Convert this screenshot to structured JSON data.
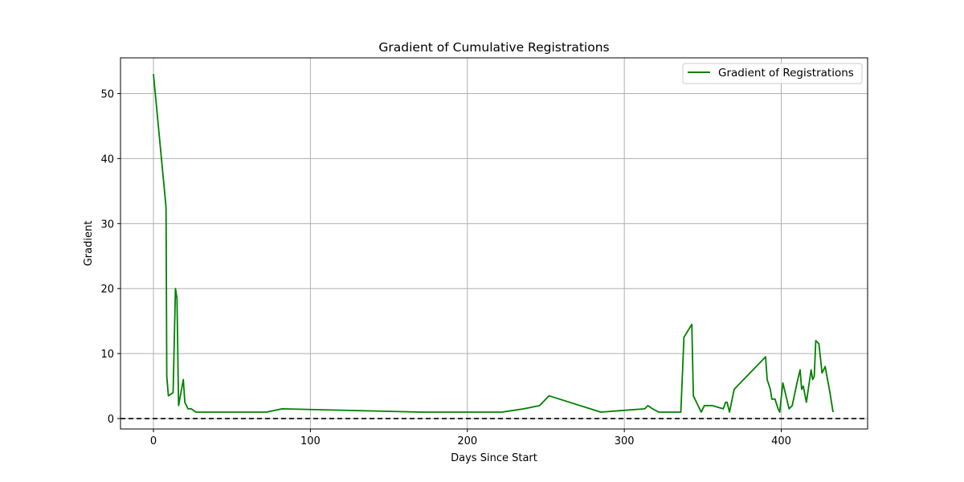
{
  "chart_data": {
    "type": "line",
    "title": "Gradient of Cumulative Registrations",
    "xlabel": "Days Since Start",
    "ylabel": "Gradient",
    "xlim": [
      -21,
      455
    ],
    "ylim": [
      -1.6,
      55.5
    ],
    "xticks": [
      0,
      100,
      200,
      300,
      400
    ],
    "yticks": [
      0,
      10,
      20,
      30,
      40,
      50
    ],
    "grid": true,
    "legend_position": "upper-right",
    "reference_line": {
      "y": 0,
      "style": "dashed",
      "color": "#000000"
    },
    "series": [
      {
        "name": "Gradient of Registrations",
        "color": "#008000",
        "x": [
          0,
          8,
          8.5,
          9.5,
          12.5,
          14,
          15,
          16,
          19,
          20,
          22,
          24,
          27,
          72,
          82,
          170,
          222,
          236,
          246,
          252,
          285,
          313,
          315,
          318,
          322,
          336,
          338,
          343,
          344,
          349,
          351,
          356,
          363,
          364.5,
          365.5,
          367,
          370,
          388,
          390,
          391,
          393,
          394,
          396,
          398,
          399,
          401,
          405,
          407,
          410,
          412,
          413,
          414,
          416,
          419,
          420,
          421,
          422,
          424,
          426,
          428,
          431,
          433
        ],
        "values": [
          53,
          32.5,
          6.5,
          3.5,
          4,
          20,
          18.5,
          2,
          6,
          2.5,
          1.5,
          1.5,
          1,
          1,
          1.5,
          1,
          1,
          1.5,
          2,
          3.5,
          1,
          1.5,
          2,
          1.5,
          1,
          1,
          12.5,
          14.5,
          3.5,
          1,
          2,
          2,
          1.5,
          2.5,
          2.5,
          1,
          4.5,
          9,
          9.5,
          6,
          4.5,
          3,
          3,
          1.5,
          1,
          5.5,
          1.5,
          2,
          5.5,
          7.5,
          4.5,
          5,
          2.5,
          7.5,
          6,
          6.5,
          12,
          11.5,
          7,
          8,
          4,
          1
        ]
      }
    ]
  }
}
